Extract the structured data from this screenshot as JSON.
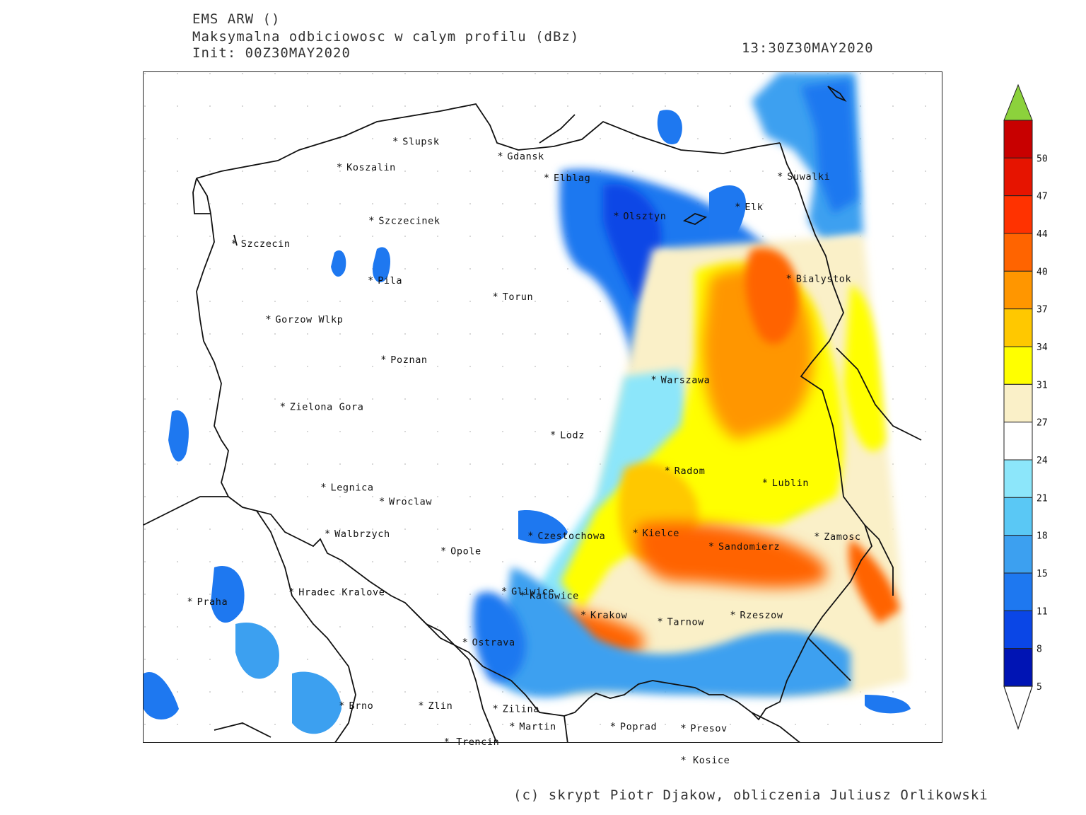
{
  "header": {
    "model": "EMS ARW ()",
    "field": "Maksymalna odbiciowosc w calym profilu (dBz)",
    "init": "Init: 00Z30MAY2020",
    "valid_time": "13:30Z30MAY2020"
  },
  "credit": "(c) skrypt Piotr Djakow, obliczenia Juliusz Orlikowski",
  "legend": {
    "unit": "dBz",
    "levels": [
      "5",
      "8",
      "11",
      "15",
      "18",
      "21",
      "24",
      "27",
      "31",
      "34",
      "37",
      "40",
      "44",
      "47",
      "50"
    ],
    "colors": [
      "#0014b4",
      "#0a46e6",
      "#1e78f0",
      "#3ca0f0",
      "#5ac8f5",
      "#8ce6fa",
      "#ffffff",
      "#faf0c8",
      "#ffff00",
      "#ffc800",
      "#ff9600",
      "#ff6400",
      "#ff3200",
      "#e61400",
      "#c80000"
    ],
    "over_color": "#8cd23c",
    "under_color": "#ffffff"
  },
  "cities": [
    {
      "name": "Slupsk",
      "lx": 0.315,
      "ly": 0.103
    },
    {
      "name": "Gdansk",
      "lx": 0.446,
      "ly": 0.125
    },
    {
      "name": "Koszalin",
      "lx": 0.245,
      "ly": 0.141
    },
    {
      "name": "Elblag",
      "lx": 0.504,
      "ly": 0.157
    },
    {
      "name": "Suwalki",
      "lx": 0.796,
      "ly": 0.155
    },
    {
      "name": "Elk",
      "lx": 0.743,
      "ly": 0.2
    },
    {
      "name": "Olsztyn",
      "lx": 0.591,
      "ly": 0.214
    },
    {
      "name": "Szczecinek",
      "lx": 0.285,
      "ly": 0.221
    },
    {
      "name": "Szczecin",
      "lx": 0.113,
      "ly": 0.255
    },
    {
      "name": "Bialystok",
      "lx": 0.807,
      "ly": 0.307
    },
    {
      "name": "Pila",
      "lx": 0.284,
      "ly": 0.31
    },
    {
      "name": "Torun",
      "lx": 0.44,
      "ly": 0.334
    },
    {
      "name": "Gorzow Wlkp",
      "lx": 0.156,
      "ly": 0.368
    },
    {
      "name": "Poznan",
      "lx": 0.3,
      "ly": 0.428
    },
    {
      "name": "Warszawa",
      "lx": 0.638,
      "ly": 0.458
    },
    {
      "name": "Zielona Gora",
      "lx": 0.174,
      "ly": 0.498
    },
    {
      "name": "Lodz",
      "lx": 0.512,
      "ly": 0.54
    },
    {
      "name": "Radom",
      "lx": 0.655,
      "ly": 0.593
    },
    {
      "name": "Legnica",
      "lx": 0.225,
      "ly": 0.618
    },
    {
      "name": "Lublin",
      "lx": 0.777,
      "ly": 0.611
    },
    {
      "name": "Wroclaw",
      "lx": 0.298,
      "ly": 0.639
    },
    {
      "name": "Walbrzych",
      "lx": 0.23,
      "ly": 0.687
    },
    {
      "name": "Czestochowa",
      "lx": 0.484,
      "ly": 0.69
    },
    {
      "name": "Kielce",
      "lx": 0.615,
      "ly": 0.686
    },
    {
      "name": "Zamosc",
      "lx": 0.842,
      "ly": 0.691
    },
    {
      "name": "Sandomierz",
      "lx": 0.71,
      "ly": 0.706
    },
    {
      "name": "Opole",
      "lx": 0.375,
      "ly": 0.713
    },
    {
      "name": "Praha",
      "lx": 0.058,
      "ly": 0.788
    },
    {
      "name": "Hradec Kralove",
      "lx": 0.185,
      "ly": 0.774
    },
    {
      "name": "Gliwice",
      "lx": 0.451,
      "ly": 0.773
    },
    {
      "name": "Katowice",
      "lx": 0.474,
      "ly": 0.779
    },
    {
      "name": "Krakow",
      "lx": 0.55,
      "ly": 0.808
    },
    {
      "name": "Tarnow",
      "lx": 0.646,
      "ly": 0.818
    },
    {
      "name": "Rzeszow",
      "lx": 0.737,
      "ly": 0.808
    },
    {
      "name": "Ostrava",
      "lx": 0.402,
      "ly": 0.849
    },
    {
      "name": "Brno",
      "lx": 0.248,
      "ly": 0.943
    },
    {
      "name": "Zlin",
      "lx": 0.347,
      "ly": 0.943
    },
    {
      "name": "Zilina",
      "lx": 0.44,
      "ly": 0.948
    },
    {
      "name": "Martin",
      "lx": 0.461,
      "ly": 0.974
    },
    {
      "name": "Poprad",
      "lx": 0.587,
      "ly": 0.974
    },
    {
      "name": "Presov",
      "lx": 0.675,
      "ly": 0.977
    },
    {
      "name": "Trencin",
      "lx": 0.38,
      "ly": 1.0
    },
    {
      "name": "Kosice",
      "lx": 0.676,
      "ly": 1.027
    }
  ]
}
